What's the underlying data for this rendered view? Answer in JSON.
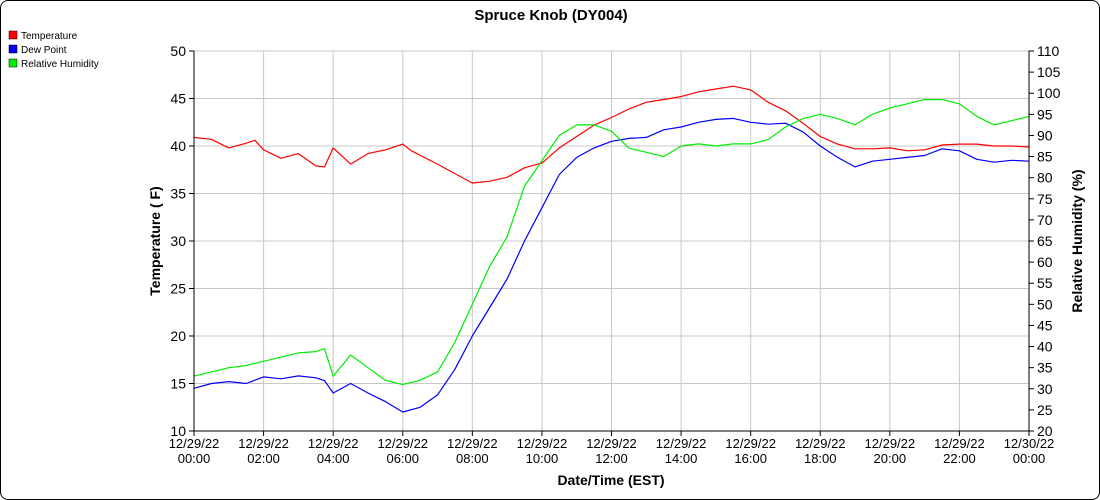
{
  "chart_data": {
    "type": "line",
    "title": "Spruce Knob (DY004)",
    "xlabel": "Date/Time (EST)",
    "ylabel_left": "Temperature ( F)",
    "ylabel_right": "Relative Humidity (%)",
    "ylim_left": [
      10,
      50
    ],
    "yticks_left": [
      "10",
      "15",
      "20",
      "25",
      "30",
      "35",
      "40",
      "45",
      "50"
    ],
    "ylim_right": [
      20,
      110
    ],
    "yticks_right": [
      "20",
      "25",
      "30",
      "35",
      "40",
      "45",
      "50",
      "55",
      "60",
      "65",
      "70",
      "75",
      "80",
      "85",
      "90",
      "95",
      "100",
      "105",
      "110"
    ],
    "xlim_hours": [
      0,
      24
    ],
    "xticks": [
      {
        "h": 0,
        "date": "12/29/22",
        "time": "00:00"
      },
      {
        "h": 2,
        "date": "12/29/22",
        "time": "02:00"
      },
      {
        "h": 4,
        "date": "12/29/22",
        "time": "04:00"
      },
      {
        "h": 6,
        "date": "12/29/22",
        "time": "06:00"
      },
      {
        "h": 8,
        "date": "12/29/22",
        "time": "08:00"
      },
      {
        "h": 10,
        "date": "12/29/22",
        "time": "10:00"
      },
      {
        "h": 12,
        "date": "12/29/22",
        "time": "12:00"
      },
      {
        "h": 14,
        "date": "12/29/22",
        "time": "14:00"
      },
      {
        "h": 16,
        "date": "12/29/22",
        "time": "16:00"
      },
      {
        "h": 18,
        "date": "12/29/22",
        "time": "18:00"
      },
      {
        "h": 20,
        "date": "12/29/22",
        "time": "20:00"
      },
      {
        "h": 22,
        "date": "12/29/22",
        "time": "22:00"
      },
      {
        "h": 24,
        "date": "12/30/22",
        "time": "00:00"
      }
    ],
    "grid": true,
    "legend_position": "top-left",
    "series": [
      {
        "name": "Temperature",
        "color": "#ff0000",
        "axis": "left",
        "points": [
          [
            0,
            40.9
          ],
          [
            0.5,
            40.7
          ],
          [
            1,
            39.8
          ],
          [
            1.5,
            40.3
          ],
          [
            1.75,
            40.6
          ],
          [
            2,
            39.6
          ],
          [
            2.5,
            38.7
          ],
          [
            3,
            39.2
          ],
          [
            3.5,
            37.9
          ],
          [
            3.75,
            37.8
          ],
          [
            4,
            39.8
          ],
          [
            4.5,
            38.1
          ],
          [
            5,
            39.2
          ],
          [
            5.5,
            39.6
          ],
          [
            6,
            40.2
          ],
          [
            6.25,
            39.5
          ],
          [
            7,
            38.1
          ],
          [
            7.5,
            37.1
          ],
          [
            8,
            36.1
          ],
          [
            8.5,
            36.3
          ],
          [
            9,
            36.7
          ],
          [
            9.5,
            37.7
          ],
          [
            10,
            38.2
          ],
          [
            10.5,
            39.8
          ],
          [
            11,
            41.0
          ],
          [
            11.5,
            42.2
          ],
          [
            12,
            43.0
          ],
          [
            12.5,
            43.9
          ],
          [
            13,
            44.6
          ],
          [
            13.5,
            44.9
          ],
          [
            14,
            45.2
          ],
          [
            14.5,
            45.7
          ],
          [
            15,
            46.0
          ],
          [
            15.5,
            46.3
          ],
          [
            16,
            45.9
          ],
          [
            16.5,
            44.6
          ],
          [
            17,
            43.7
          ],
          [
            17.5,
            42.4
          ],
          [
            18,
            41.0
          ],
          [
            18.5,
            40.2
          ],
          [
            19,
            39.7
          ],
          [
            19.5,
            39.7
          ],
          [
            20,
            39.8
          ],
          [
            20.5,
            39.5
          ],
          [
            21,
            39.6
          ],
          [
            21.5,
            40.1
          ],
          [
            22,
            40.2
          ],
          [
            22.5,
            40.2
          ],
          [
            23,
            40.0
          ],
          [
            23.5,
            40.0
          ],
          [
            24,
            39.9
          ]
        ]
      },
      {
        "name": "Dew Point",
        "color": "#0000ff",
        "axis": "left",
        "points": [
          [
            0,
            14.5
          ],
          [
            0.5,
            15.0
          ],
          [
            1,
            15.2
          ],
          [
            1.5,
            15.0
          ],
          [
            2,
            15.7
          ],
          [
            2.5,
            15.5
          ],
          [
            3,
            15.8
          ],
          [
            3.5,
            15.6
          ],
          [
            3.75,
            15.3
          ],
          [
            4,
            14.0
          ],
          [
            4.5,
            15.0
          ],
          [
            5,
            14.0
          ],
          [
            5.5,
            13.1
          ],
          [
            6,
            12.0
          ],
          [
            6.5,
            12.5
          ],
          [
            7,
            13.8
          ],
          [
            7.5,
            16.5
          ],
          [
            8,
            20.0
          ],
          [
            8.5,
            23.0
          ],
          [
            9,
            26.0
          ],
          [
            9.5,
            30.0
          ],
          [
            10,
            33.5
          ],
          [
            10.5,
            37.0
          ],
          [
            11,
            38.8
          ],
          [
            11.5,
            39.8
          ],
          [
            12,
            40.5
          ],
          [
            12.5,
            40.8
          ],
          [
            13,
            40.9
          ],
          [
            13.5,
            41.7
          ],
          [
            14,
            42.0
          ],
          [
            14.5,
            42.5
          ],
          [
            15,
            42.8
          ],
          [
            15.5,
            42.9
          ],
          [
            16,
            42.5
          ],
          [
            16.5,
            42.3
          ],
          [
            17,
            42.4
          ],
          [
            17.5,
            41.5
          ],
          [
            18,
            40.0
          ],
          [
            18.5,
            38.8
          ],
          [
            19,
            37.8
          ],
          [
            19.5,
            38.4
          ],
          [
            20,
            38.6
          ],
          [
            20.5,
            38.8
          ],
          [
            21,
            39.0
          ],
          [
            21.5,
            39.7
          ],
          [
            22,
            39.5
          ],
          [
            22.5,
            38.6
          ],
          [
            23,
            38.3
          ],
          [
            23.5,
            38.5
          ],
          [
            24,
            38.4
          ]
        ]
      },
      {
        "name": "Relative Humidity",
        "color": "#00ee00",
        "axis": "right",
        "points": [
          [
            0,
            33
          ],
          [
            0.5,
            34
          ],
          [
            1,
            35
          ],
          [
            1.5,
            35.5
          ],
          [
            2,
            36.5
          ],
          [
            2.5,
            37.5
          ],
          [
            3,
            38.5
          ],
          [
            3.5,
            38.8
          ],
          [
            3.75,
            39.5
          ],
          [
            4,
            33
          ],
          [
            4.5,
            38
          ],
          [
            5,
            35
          ],
          [
            5.5,
            32
          ],
          [
            6,
            31
          ],
          [
            6.5,
            32
          ],
          [
            7,
            34
          ],
          [
            7.5,
            41
          ],
          [
            8,
            50
          ],
          [
            8.5,
            59
          ],
          [
            9,
            66
          ],
          [
            9.5,
            78
          ],
          [
            10,
            84
          ],
          [
            10.5,
            90
          ],
          [
            11,
            92.5
          ],
          [
            11.5,
            92.5
          ],
          [
            12,
            91
          ],
          [
            12.5,
            87
          ],
          [
            13,
            86
          ],
          [
            13.5,
            85
          ],
          [
            14,
            87.5
          ],
          [
            14.5,
            88
          ],
          [
            15,
            87.5
          ],
          [
            15.5,
            88
          ],
          [
            16,
            88
          ],
          [
            16.5,
            89
          ],
          [
            17,
            92
          ],
          [
            17.5,
            94
          ],
          [
            18,
            95
          ],
          [
            18.5,
            94
          ],
          [
            19,
            92.5
          ],
          [
            19.5,
            95
          ],
          [
            20,
            96.5
          ],
          [
            20.5,
            97.5
          ],
          [
            21,
            98.5
          ],
          [
            21.5,
            98.5
          ],
          [
            22,
            97.5
          ],
          [
            22.5,
            94.5
          ],
          [
            23,
            92.5
          ],
          [
            23.5,
            93.5
          ],
          [
            24,
            94.5
          ]
        ]
      }
    ]
  }
}
